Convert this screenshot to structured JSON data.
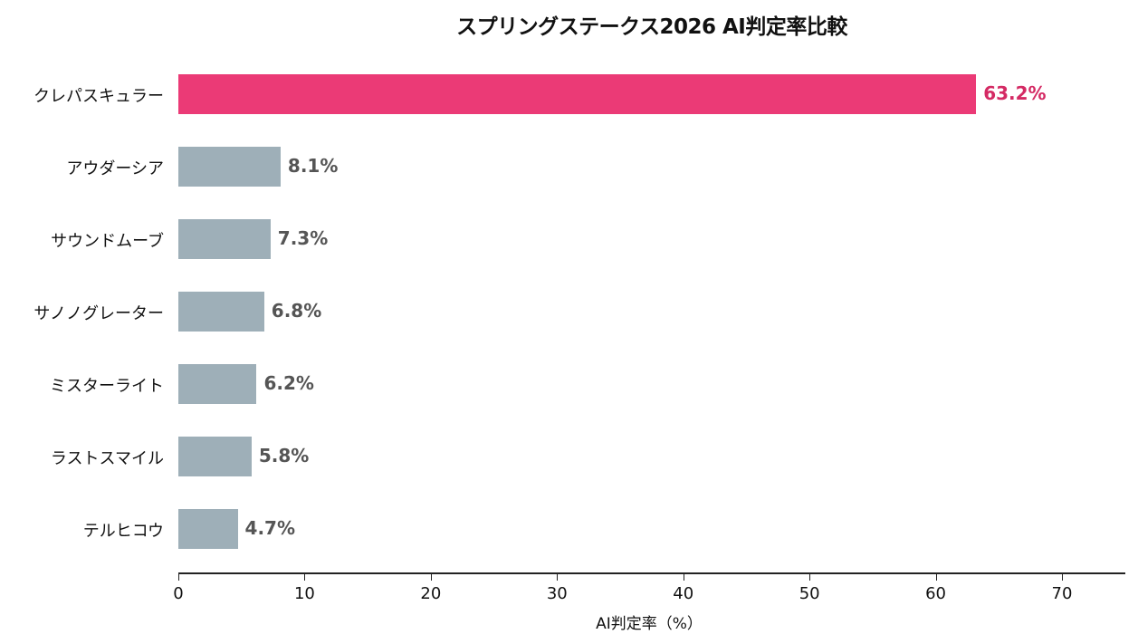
{
  "chart_data": {
    "type": "bar",
    "orientation": "horizontal",
    "title": "スプリングステークス2026 AI判定率比較",
    "xlabel": "AI判定率（%）",
    "ylabel": "",
    "xlim": [
      0,
      75
    ],
    "xticks": [
      0,
      10,
      20,
      30,
      40,
      50,
      60,
      70
    ],
    "grid": false,
    "legend": null,
    "categories": [
      "クレパスキュラー",
      "アウダーシア",
      "サウンドムーブ",
      "サノノグレーター",
      "ミスターライト",
      "ラストスマイル",
      "テルヒコウ"
    ],
    "values": [
      63.2,
      8.1,
      7.3,
      6.8,
      6.2,
      5.8,
      4.7
    ],
    "value_labels": [
      "63.2%",
      "8.1%",
      "7.3%",
      "6.8%",
      "6.2%",
      "5.8%",
      "4.7%"
    ],
    "colors": {
      "highlight": "#eb3a76",
      "highlight_label": "#d42a64",
      "default": "#9eafb8",
      "default_label": "#555555"
    },
    "highlighted_index": 0
  },
  "labels": {
    "title": "スプリングステークス2026 AI判定率比較",
    "xlabel": "AI判定率（%）",
    "ticks": [
      "0",
      "10",
      "20",
      "30",
      "40",
      "50",
      "60",
      "70"
    ]
  }
}
